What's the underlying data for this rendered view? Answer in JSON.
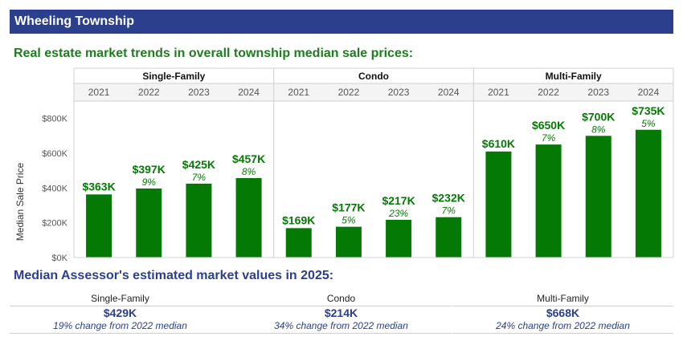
{
  "header": {
    "title": "Wheeling Township"
  },
  "subtitle": "Real estate market trends in overall township median sale prices:",
  "chart_data": {
    "type": "bar",
    "ylabel": "Median Sale Price",
    "ylim": [
      0,
      900000
    ],
    "yticks": [
      0,
      200000,
      400000,
      600000,
      800000
    ],
    "ytick_labels": [
      "$0K",
      "$200K",
      "$400K",
      "$600K",
      "$800K"
    ],
    "bar_color": "#047a04",
    "label_color": "#047a04",
    "panels": [
      {
        "name": "Single-Family",
        "categories": [
          "2021",
          "2022",
          "2023",
          "2024"
        ],
        "values": [
          363000,
          397000,
          425000,
          457000
        ],
        "value_labels": [
          "$363K",
          "$397K",
          "$425K",
          "$457K"
        ],
        "pct_labels": [
          "",
          "9%",
          "7%",
          "8%"
        ]
      },
      {
        "name": "Condo",
        "categories": [
          "2021",
          "2022",
          "2023",
          "2024"
        ],
        "values": [
          169000,
          177000,
          217000,
          232000
        ],
        "value_labels": [
          "$169K",
          "$177K",
          "$217K",
          "$232K"
        ],
        "pct_labels": [
          "",
          "5%",
          "23%",
          "7%"
        ]
      },
      {
        "name": "Multi-Family",
        "categories": [
          "2021",
          "2022",
          "2023",
          "2024"
        ],
        "values": [
          610000,
          650000,
          700000,
          735000
        ],
        "value_labels": [
          "$610K",
          "$650K",
          "$700K",
          "$735K"
        ],
        "pct_labels": [
          "",
          "7%",
          "8%",
          "5%"
        ]
      }
    ]
  },
  "assessor": {
    "title": "Median Assessor's estimated market values in 2025:",
    "items": [
      {
        "category": "Single-Family",
        "value": "$429K",
        "change": "19% change from 2022 median"
      },
      {
        "category": "Condo",
        "value": "$214K",
        "change": "34% change from 2022 median"
      },
      {
        "category": "Multi-Family",
        "value": "$668K",
        "change": "24% change from 2022 median"
      }
    ]
  }
}
